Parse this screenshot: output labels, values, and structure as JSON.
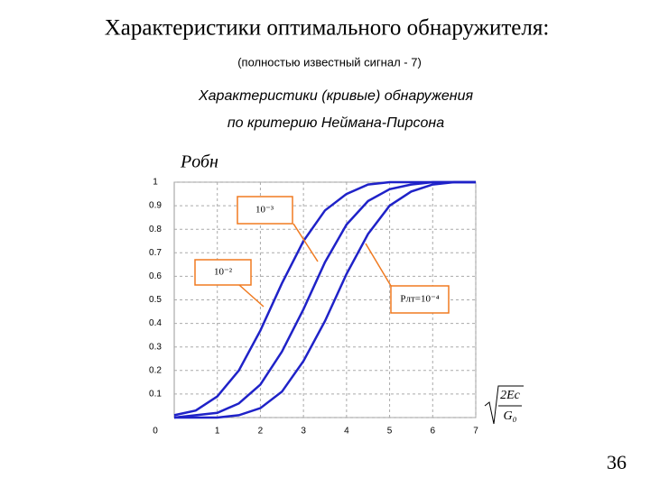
{
  "slide": {
    "title": "Характеристики оптимального обнаружителя:",
    "subtitle": "(полностью известный сигнал - 7)",
    "lines": [
      "Характеристики (кривые) обнаружения",
      "по критерию Неймана-Пирсона"
    ],
    "page_number": "36"
  },
  "chart_data": {
    "type": "line",
    "y_label": "Pобн",
    "x_label": {
      "numerator": "2Eс",
      "denominator": "G₀"
    },
    "x": [
      0,
      0.5,
      1,
      1.5,
      2,
      2.5,
      3,
      3.5,
      4,
      4.5,
      5,
      5.5,
      6,
      6.5,
      7
    ],
    "series": [
      {
        "color": "#1f22c8",
        "values": [
          0.01,
          0.03,
          0.09,
          0.2,
          0.37,
          0.57,
          0.75,
          0.88,
          0.95,
          0.99,
          1,
          1,
          1,
          1,
          1
        ]
      },
      {
        "color": "#1f22c8",
        "values": [
          0.0,
          0.01,
          0.02,
          0.06,
          0.14,
          0.28,
          0.46,
          0.66,
          0.82,
          0.92,
          0.97,
          0.99,
          1,
          1,
          1
        ]
      },
      {
        "color": "#1f22c8",
        "values": [
          0.0,
          0.0,
          0.0,
          0.01,
          0.04,
          0.11,
          0.24,
          0.41,
          0.61,
          0.78,
          0.9,
          0.96,
          0.99,
          1,
          1
        ]
      }
    ],
    "annotations": [
      "10⁻³",
      "10⁻²",
      "Pлт=10⁻⁴"
    ],
    "xlim": [
      0,
      7
    ],
    "xticks": [
      1,
      2,
      3,
      4,
      5,
      6,
      7
    ],
    "ylim": [
      0,
      1
    ],
    "yticks": [
      0,
      0.1,
      0.2,
      0.3,
      0.4,
      0.5,
      0.6,
      0.7,
      0.8,
      0.9,
      1
    ],
    "grid": true
  }
}
